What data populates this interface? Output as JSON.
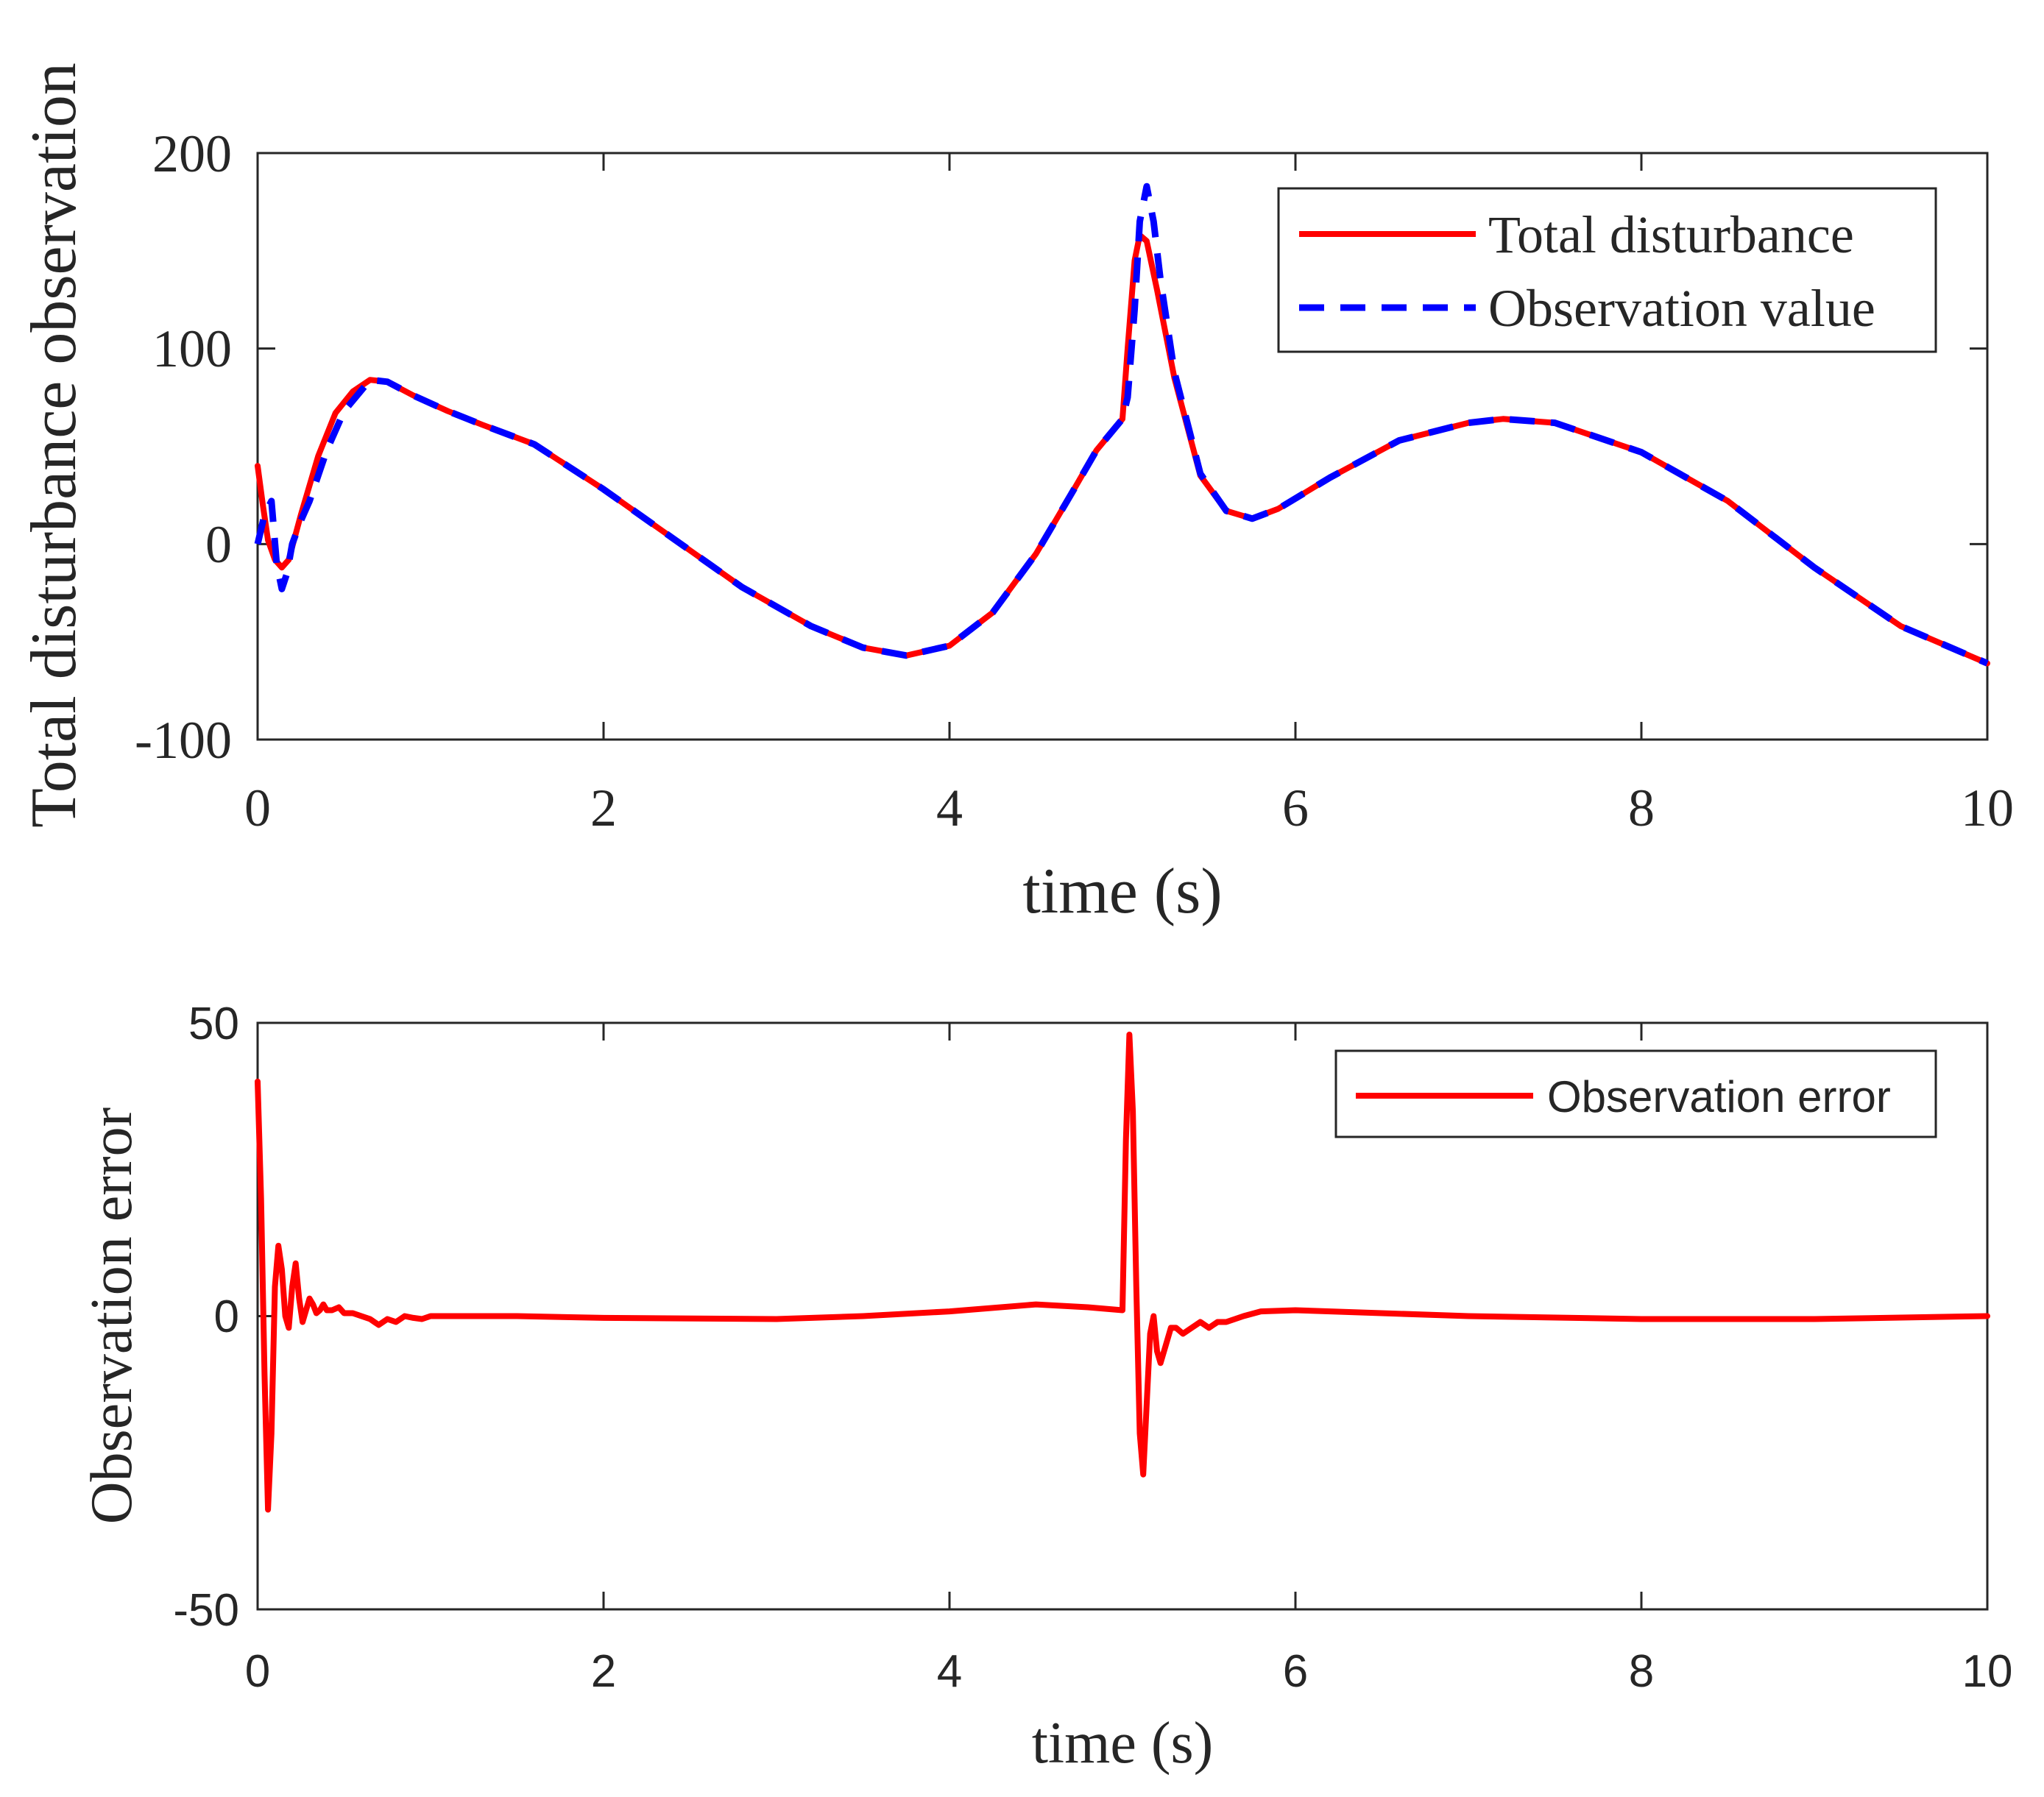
{
  "colors": {
    "total": "#ff0000",
    "observed": "#0000ff",
    "axis": "#262626"
  },
  "chart_data": [
    {
      "type": "line",
      "xlabel": "time (s)",
      "ylabel": "Total disturbance observation",
      "xlim": [
        0,
        10
      ],
      "ylim": [
        -100,
        200
      ],
      "xticks": [
        "0",
        "2",
        "4",
        "6",
        "8",
        "10"
      ],
      "yticks": [
        "-100",
        "0",
        "100",
        "200"
      ],
      "legend_position": "top-right",
      "series": [
        {
          "name": "Total disturbance",
          "color": "#ff0000",
          "style": "solid",
          "x": [
            0,
            0.03,
            0.06,
            0.1,
            0.14,
            0.18,
            0.25,
            0.35,
            0.45,
            0.55,
            0.65,
            0.75,
            0.9,
            1.1,
            1.3,
            1.6,
            2.0,
            2.4,
            2.8,
            3.2,
            3.5,
            3.75,
            4.0,
            4.25,
            4.5,
            4.7,
            4.85,
            5.0,
            5.03,
            5.07,
            5.1,
            5.14,
            5.2,
            5.3,
            5.45,
            5.6,
            5.75,
            5.9,
            6.2,
            6.6,
            7.0,
            7.2,
            7.5,
            8.0,
            8.5,
            9.0,
            9.5,
            10.0
          ],
          "y": [
            40,
            20,
            2,
            -8,
            -12,
            -8,
            15,
            45,
            67,
            78,
            84,
            83,
            76,
            68,
            61,
            51,
            28,
            3,
            -22,
            -42,
            -53,
            -57,
            -52,
            -35,
            -5,
            25,
            48,
            64,
            100,
            145,
            158,
            155,
            130,
            85,
            35,
            17,
            13,
            18,
            34,
            53,
            62,
            64,
            62,
            47,
            22,
            -12,
            -42,
            -61
          ]
        },
        {
          "name": "Observation value",
          "color": "#0000ff",
          "style": "dashed",
          "x": [
            0,
            0.04,
            0.08,
            0.11,
            0.14,
            0.17,
            0.2,
            0.25,
            0.3,
            0.4,
            0.5,
            0.65,
            0.75,
            0.9,
            1.1,
            1.3,
            1.6,
            2.0,
            2.4,
            2.8,
            3.2,
            3.5,
            3.75,
            4.0,
            4.25,
            4.5,
            4.7,
            4.85,
            5.0,
            5.03,
            5.07,
            5.1,
            5.14,
            5.18,
            5.22,
            5.3,
            5.45,
            5.6,
            5.75,
            5.9,
            6.2,
            6.6,
            7.0,
            7.2,
            7.5,
            8.0,
            8.5,
            9.0,
            9.5,
            10.0
          ],
          "y": [
            0,
            15,
            22,
            -10,
            -23,
            -15,
            0,
            12,
            22,
            48,
            68,
            84,
            83,
            76,
            68,
            61,
            51,
            28,
            3,
            -22,
            -42,
            -53,
            -57,
            -52,
            -35,
            -5,
            25,
            48,
            64,
            75,
            120,
            165,
            183,
            165,
            135,
            88,
            36,
            17,
            13,
            18,
            34,
            53,
            62,
            64,
            62,
            47,
            22,
            -12,
            -42,
            -61
          ]
        }
      ]
    },
    {
      "type": "line",
      "xlabel": "time (s)",
      "ylabel": "Observation error",
      "xlim": [
        0,
        10
      ],
      "ylim": [
        -50,
        50
      ],
      "xticks": [
        "0",
        "2",
        "4",
        "6",
        "8",
        "10"
      ],
      "yticks": [
        "-50",
        "0",
        "50"
      ],
      "legend_position": "top-right",
      "series": [
        {
          "name": "Observation error",
          "color": "#ff0000",
          "style": "solid",
          "x": [
            0,
            0.02,
            0.04,
            0.06,
            0.08,
            0.1,
            0.12,
            0.14,
            0.16,
            0.18,
            0.2,
            0.22,
            0.24,
            0.26,
            0.28,
            0.3,
            0.32,
            0.34,
            0.36,
            0.38,
            0.4,
            0.43,
            0.47,
            0.5,
            0.55,
            0.6,
            0.65,
            0.7,
            0.75,
            0.8,
            0.85,
            0.9,
            0.95,
            1.0,
            1.5,
            2.0,
            3.0,
            3.5,
            4.0,
            4.5,
            4.8,
            5.0,
            5.02,
            5.04,
            5.06,
            5.08,
            5.1,
            5.12,
            5.14,
            5.16,
            5.18,
            5.2,
            5.22,
            5.25,
            5.28,
            5.31,
            5.35,
            5.4,
            5.45,
            5.5,
            5.55,
            5.6,
            5.65,
            5.7,
            5.8,
            6.0,
            7.0,
            8.0,
            9.0,
            10.0
          ],
          "y": [
            40,
            20,
            -10,
            -33,
            -20,
            5,
            12,
            8,
            0,
            -2,
            5,
            9,
            3,
            -1,
            1,
            3,
            2,
            0.5,
            1,
            2,
            1,
            1,
            1.5,
            0.5,
            0.5,
            0,
            -0.5,
            -1.5,
            -0.5,
            -1,
            0,
            -0.3,
            -0.5,
            0,
            0,
            -0.3,
            -0.5,
            0,
            0.8,
            2,
            1.5,
            1,
            30,
            48,
            35,
            5,
            -20,
            -27,
            -15,
            -3,
            0,
            -6,
            -8,
            -5,
            -2,
            -2,
            -3,
            -2,
            -1,
            -2,
            -1,
            -1,
            -0.5,
            0,
            0.8,
            1,
            0,
            -0.5,
            -0.5,
            0
          ]
        }
      ]
    }
  ]
}
